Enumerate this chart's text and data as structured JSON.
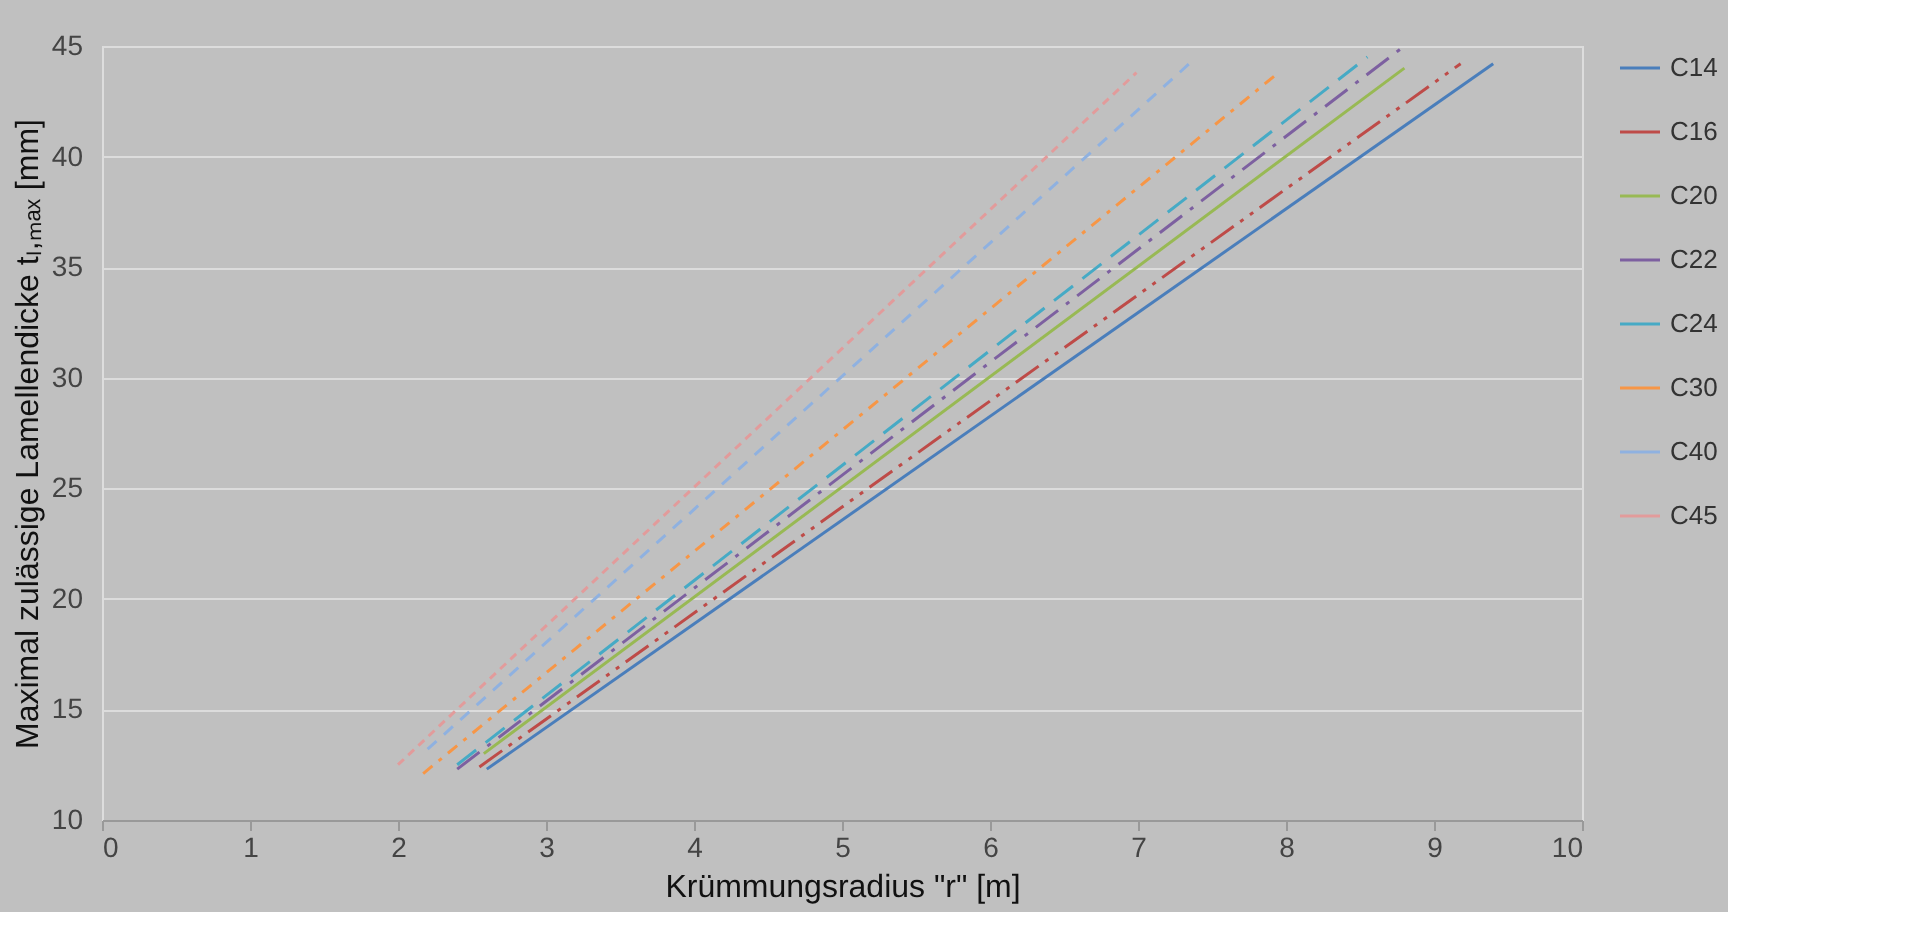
{
  "chart_data": {
    "type": "line",
    "xlabel": "Krümmungsradius  \"r\" [m]",
    "ylabel": "Maximal zulässige Lamellendicke tₗ,ₘₐₓ [mm]",
    "xlim": [
      0,
      10
    ],
    "xticks": [
      0,
      1,
      2,
      3,
      4,
      5,
      6,
      7,
      8,
      9,
      10
    ],
    "ylim": [
      10,
      45
    ],
    "yticks": [
      10,
      15,
      20,
      25,
      30,
      35,
      40,
      45
    ],
    "grid": "y",
    "legend": "right",
    "marker": "none",
    "series": [
      {
        "name": "C14",
        "color": "#4a7ebb",
        "line_style": "solid",
        "x": [
          2.6,
          9.4
        ],
        "values": [
          12.3,
          44.2
        ]
      },
      {
        "name": "C16",
        "color": "#be4b48",
        "line_style": "dashed",
        "x": [
          2.55,
          9.18
        ],
        "values": [
          12.4,
          44.2
        ]
      },
      {
        "name": "C20",
        "color": "#98b954",
        "line_style": "solid",
        "x": [
          2.58,
          8.8
        ],
        "values": [
          13.0,
          44.0
        ]
      },
      {
        "name": "C22",
        "color": "#7d60a0",
        "line_style": "dashed",
        "x": [
          2.4,
          8.8
        ],
        "values": [
          12.3,
          45.0
        ]
      },
      {
        "name": "C24",
        "color": "#46aac5",
        "line_style": "dashed",
        "x": [
          2.4,
          8.55
        ],
        "values": [
          12.5,
          44.5
        ]
      },
      {
        "name": "C30",
        "color": "#f79646",
        "line_style": "dashed",
        "x": [
          2.17,
          7.95
        ],
        "values": [
          12.1,
          43.8
        ]
      },
      {
        "name": "C40",
        "color": "#8fb1e0",
        "line_style": "dashed",
        "x": [
          2.2,
          7.38
        ],
        "values": [
          13.2,
          44.4
        ]
      },
      {
        "name": "C45",
        "color": "#e29b9b",
        "line_style": "dashed",
        "x": [
          2.0,
          6.99
        ],
        "values": [
          12.5,
          43.8
        ]
      }
    ]
  }
}
